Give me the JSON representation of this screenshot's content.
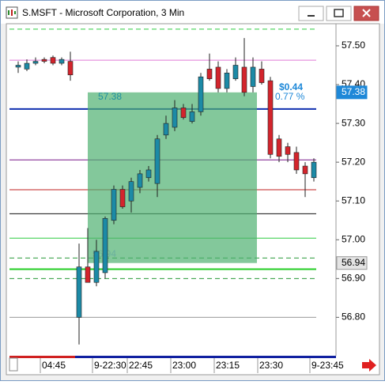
{
  "window": {
    "title": "S.MSFT - Microsoft Corporation, 3 Min"
  },
  "chart_data": {
    "type": "candlestick",
    "categories": [
      null,
      null,
      null,
      "04:45",
      null,
      null,
      null,
      null,
      null,
      "9-22:30",
      null,
      null,
      null,
      "22:45",
      null,
      null,
      null,
      null,
      "23:00",
      null,
      null,
      null,
      null,
      "23:15",
      null,
      null,
      null,
      null,
      "23:30",
      null,
      null,
      null,
      null,
      null,
      "9-23:45"
    ],
    "open": [
      57.445,
      57.44,
      57.455,
      57.465,
      57.47,
      57.455,
      57.46,
      56.8,
      56.93,
      56.89,
      56.915,
      57.05,
      57.13,
      57.1,
      57.135,
      57.16,
      57.145,
      57.27,
      57.29,
      57.34,
      57.305,
      57.33,
      57.44,
      57.445,
      57.39,
      57.415,
      57.445,
      57.395,
      57.44,
      57.41,
      57.26,
      57.24,
      57.225,
      57.19,
      57.16
    ],
    "high": [
      57.46,
      57.465,
      57.47,
      57.47,
      57.475,
      57.47,
      57.485,
      56.99,
      57.03,
      57.0,
      57.06,
      57.14,
      57.14,
      57.16,
      57.18,
      57.19,
      57.27,
      57.32,
      57.36,
      57.35,
      57.35,
      57.43,
      57.48,
      57.46,
      57.44,
      57.47,
      57.52,
      57.47,
      57.46,
      57.42,
      57.27,
      57.25,
      57.24,
      57.2,
      57.21
    ],
    "low": [
      57.43,
      57.435,
      57.45,
      57.455,
      57.45,
      57.45,
      57.41,
      56.73,
      56.89,
      56.88,
      56.9,
      57.04,
      57.08,
      57.07,
      57.12,
      57.15,
      57.11,
      57.26,
      57.28,
      57.31,
      57.3,
      57.32,
      57.41,
      57.38,
      57.38,
      57.41,
      57.37,
      57.38,
      57.4,
      57.21,
      57.2,
      57.2,
      57.17,
      57.11,
      57.15
    ],
    "close": [
      57.45,
      57.455,
      57.46,
      57.46,
      57.455,
      57.465,
      57.425,
      56.93,
      56.89,
      56.97,
      57.055,
      57.13,
      57.085,
      57.15,
      57.17,
      57.18,
      57.26,
      57.3,
      57.34,
      57.315,
      57.33,
      57.42,
      57.415,
      57.39,
      57.43,
      57.45,
      57.38,
      57.445,
      57.405,
      57.22,
      57.215,
      57.22,
      57.18,
      57.17,
      57.2
    ],
    "up_color": "#1c8aa6",
    "down_color": "#d3242c",
    "ylim": [
      56.705,
      57.557
    ],
    "yticks": [
      {
        "value": 57.5,
        "label": "57.50"
      },
      {
        "value": 57.4,
        "label": "57.40"
      },
      {
        "value": 57.3,
        "label": "57.30"
      },
      {
        "value": 57.2,
        "label": "57.20"
      },
      {
        "value": 57.1,
        "label": "57.10"
      },
      {
        "value": 57.0,
        "label": "57.00"
      },
      {
        "value": 56.9,
        "label": "56.90"
      },
      {
        "value": 56.8,
        "label": "56.80"
      }
    ],
    "levels": [
      {
        "value": 57.543,
        "color": "#2ecc40",
        "dashed": true,
        "width": 1
      },
      {
        "value": 57.463,
        "color": "#e07ad8",
        "dashed": false,
        "width": 1
      },
      {
        "value": 57.337,
        "color": "#1030b0",
        "dashed": false,
        "width": 2
      },
      {
        "value": 57.206,
        "color": "#7a1a8a",
        "dashed": false,
        "width": 1
      },
      {
        "value": 57.129,
        "color": "#c02020",
        "dashed": false,
        "width": 1
      },
      {
        "value": 57.067,
        "color": "#111111",
        "dashed": false,
        "width": 1
      },
      {
        "value": 57.004,
        "color": "#2ecc40",
        "dashed": false,
        "width": 1
      },
      {
        "value": 56.953,
        "color": "#2a9a3a",
        "dashed": true,
        "width": 1
      },
      {
        "value": 56.924,
        "color": "#22cc22",
        "dashed": false,
        "width": 2
      },
      {
        "value": 56.9,
        "color": "#2a9a3a",
        "dashed": true,
        "width": 1
      },
      {
        "value": 56.8,
        "color": "#999999",
        "dashed": false,
        "width": 1
      }
    ],
    "price_markers": [
      57.38,
      56.94
    ],
    "measurement": {
      "top": 57.38,
      "bottom": 56.94,
      "change": {
        "value": 0.44,
        "label": "$0.44"
      },
      "percent": {
        "value": 0.77,
        "label": "0.77 %"
      }
    }
  }
}
